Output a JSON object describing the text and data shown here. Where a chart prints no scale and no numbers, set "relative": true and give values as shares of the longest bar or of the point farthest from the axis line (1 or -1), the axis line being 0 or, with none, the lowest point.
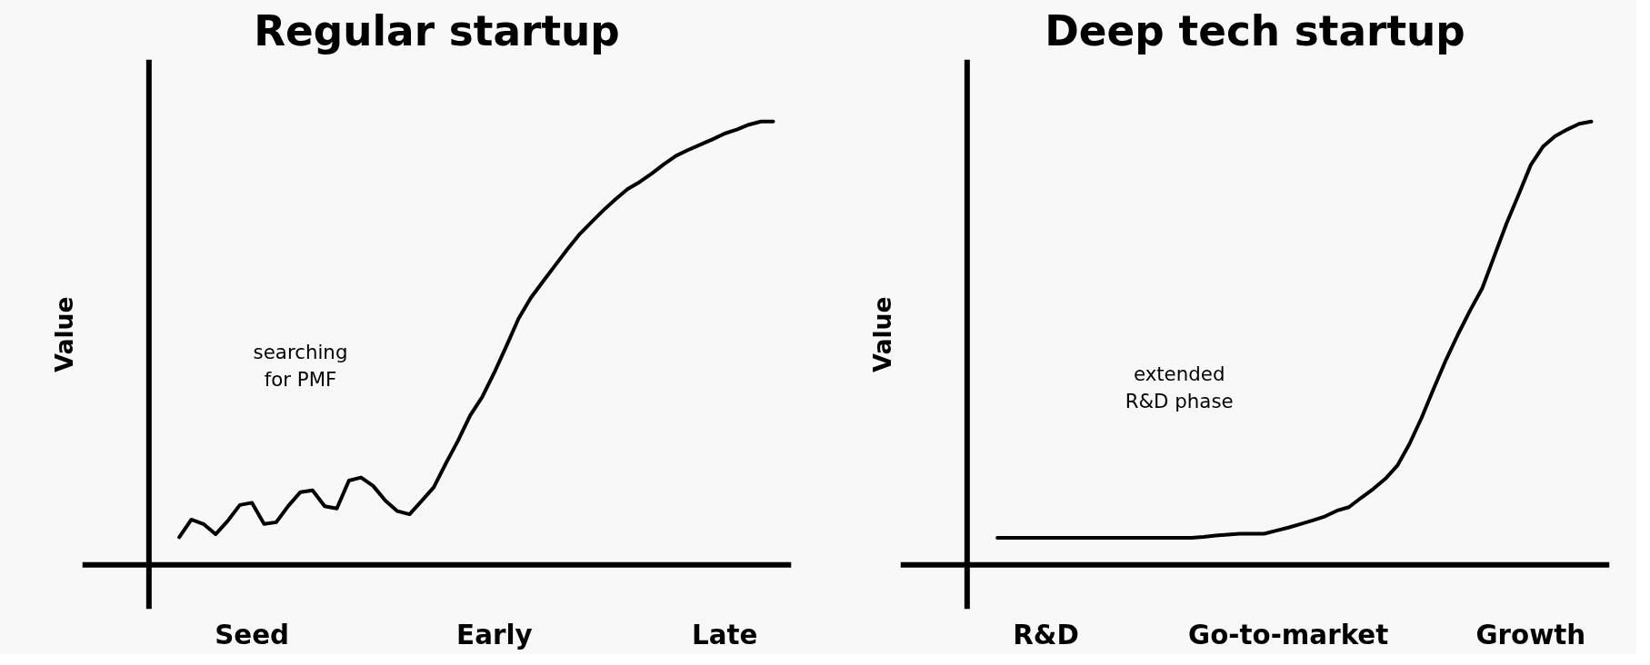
{
  "chart_data": [
    {
      "type": "line",
      "title": "Regular startup",
      "ylabel": "Value",
      "relative": true,
      "categories": [
        null,
        null,
        null,
        null,
        null,
        null,
        "Seed",
        null,
        null,
        null,
        null,
        null,
        null,
        null,
        null,
        null,
        null,
        null,
        null,
        null,
        null,
        null,
        null,
        null,
        null,
        null,
        "Early",
        null,
        null,
        null,
        null,
        null,
        null,
        null,
        null,
        null,
        null,
        null,
        null,
        null,
        null,
        null,
        null,
        null,
        null,
        "Late",
        null,
        null,
        null,
        null
      ],
      "annotations": [
        "searching\nfor PMF"
      ],
      "series": [
        {
          "color": "#000000",
          "values": [
            0.062,
            0.102,
            0.092,
            0.069,
            0.099,
            0.135,
            0.14,
            0.092,
            0.096,
            0.133,
            0.164,
            0.168,
            0.132,
            0.127,
            0.19,
            0.197,
            0.178,
            0.145,
            0.121,
            0.114,
            0.144,
            0.175,
            0.229,
            0.28,
            0.337,
            0.379,
            0.434,
            0.494,
            0.556,
            0.602,
            0.639,
            0.675,
            0.711,
            0.745,
            0.773,
            0.8,
            0.825,
            0.848,
            0.864,
            0.883,
            0.904,
            0.923,
            0.936,
            0.948,
            0.96,
            0.973,
            0.982,
            0.993,
            1.0,
            1.0
          ]
        }
      ]
    },
    {
      "type": "line",
      "title": "Deep tech startup",
      "ylabel": "Value",
      "relative": true,
      "categories": [
        null,
        null,
        null,
        null,
        "R&D",
        null,
        null,
        null,
        null,
        null,
        null,
        null,
        null,
        null,
        null,
        null,
        null,
        null,
        null,
        null,
        null,
        null,
        null,
        null,
        "Go-to-market",
        null,
        null,
        null,
        null,
        null,
        null,
        null,
        null,
        null,
        null,
        null,
        null,
        null,
        null,
        null,
        null,
        null,
        null,
        null,
        "Growth",
        null,
        null,
        null,
        null,
        null
      ],
      "annotations": [
        "extended\nR&D phase"
      ],
      "series": [
        {
          "color": "#000000",
          "values": [
            0.061,
            0.061,
            0.061,
            0.061,
            0.061,
            0.061,
            0.061,
            0.061,
            0.061,
            0.061,
            0.061,
            0.061,
            0.061,
            0.061,
            0.061,
            0.061,
            0.061,
            0.063,
            0.066,
            0.068,
            0.07,
            0.07,
            0.07,
            0.077,
            0.084,
            0.092,
            0.1,
            0.109,
            0.122,
            0.13,
            0.151,
            0.171,
            0.194,
            0.224,
            0.273,
            0.332,
            0.398,
            0.462,
            0.52,
            0.574,
            0.624,
            0.697,
            0.77,
            0.835,
            0.902,
            0.943,
            0.967,
            0.982,
            0.995,
            1.0
          ]
        }
      ]
    }
  ]
}
